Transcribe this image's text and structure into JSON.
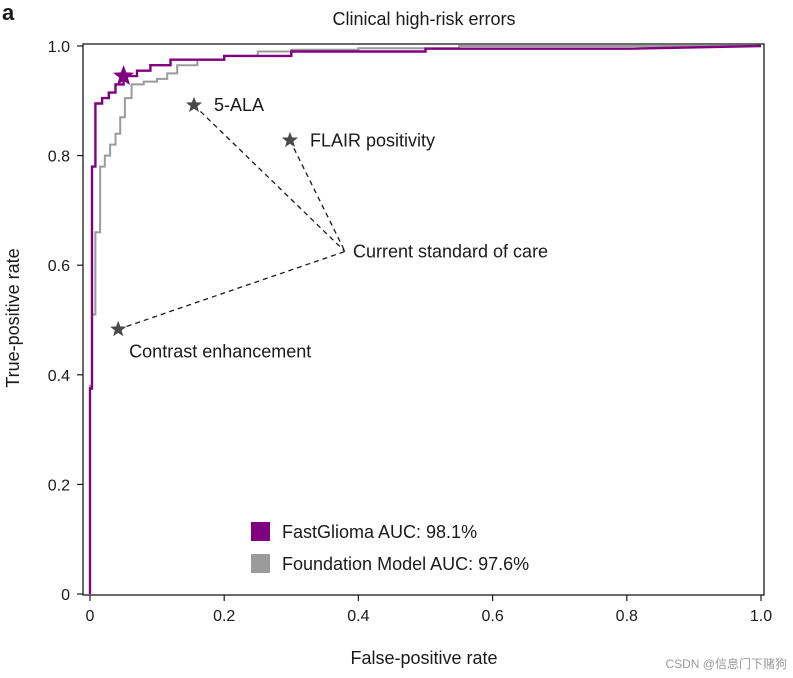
{
  "panel_label": "a",
  "watermark": "CSDN @信息门下赌狗",
  "colors": {
    "fastglioma": "#800080",
    "foundation": "#9b9b9b",
    "star": "#4a4a4a",
    "axis": "#1a1a1a"
  },
  "chart_data": {
    "type": "line",
    "title": "Clinical high-risk errors",
    "xlabel": "False-positive rate",
    "ylabel": "True-positive rate",
    "xlim": [
      0,
      1.0
    ],
    "ylim": [
      0,
      1.0
    ],
    "xticks": [
      0,
      0.2,
      0.4,
      0.6,
      0.8,
      1.0
    ],
    "xtick_labels": [
      "0",
      "0.2",
      "0.4",
      "0.6",
      "0.8",
      "1.0"
    ],
    "yticks": [
      0,
      0.2,
      0.4,
      0.6,
      0.8,
      1.0
    ],
    "ytick_labels": [
      "0",
      "0.2",
      "0.4",
      "0.6",
      "0.8",
      "1.0"
    ],
    "grid": false,
    "legend": {
      "position": "bottom-center",
      "items": [
        {
          "name": "FastGlioma AUC: 98.1%",
          "series": 0
        },
        {
          "name": "Foundation Model AUC: 97.6%",
          "series": 1
        }
      ]
    },
    "series": [
      {
        "name": "FastGlioma",
        "auc": 98.1,
        "x": [
          0,
          0,
          0.003,
          0.003,
          0.008,
          0.008,
          0.018,
          0.018,
          0.028,
          0.028,
          0.038,
          0.038,
          0.05,
          0.05,
          0.07,
          0.07,
          0.09,
          0.09,
          0.12,
          0.12,
          0.2,
          0.2,
          0.3,
          0.3,
          0.5,
          0.5,
          0.8,
          1.0
        ],
        "y": [
          0,
          0.375,
          0.375,
          0.78,
          0.78,
          0.895,
          0.895,
          0.905,
          0.905,
          0.915,
          0.915,
          0.93,
          0.93,
          0.945,
          0.945,
          0.955,
          0.955,
          0.965,
          0.965,
          0.975,
          0.975,
          0.982,
          0.982,
          0.99,
          0.99,
          0.995,
          0.995,
          1.0
        ]
      },
      {
        "name": "Foundation Model",
        "auc": 97.6,
        "x": [
          0,
          0,
          0.003,
          0.003,
          0.008,
          0.008,
          0.015,
          0.015,
          0.022,
          0.022,
          0.03,
          0.03,
          0.038,
          0.038,
          0.045,
          0.045,
          0.052,
          0.052,
          0.062,
          0.062,
          0.08,
          0.08,
          0.1,
          0.1,
          0.115,
          0.115,
          0.13,
          0.13,
          0.16,
          0.16,
          0.2,
          0.2,
          0.25,
          0.25,
          0.3,
          0.3,
          0.4,
          0.4,
          0.55,
          0.55,
          0.69,
          0.69,
          1.0
        ],
        "y": [
          0,
          0.38,
          0.38,
          0.51,
          0.51,
          0.66,
          0.66,
          0.78,
          0.78,
          0.8,
          0.8,
          0.82,
          0.82,
          0.84,
          0.84,
          0.87,
          0.87,
          0.905,
          0.905,
          0.93,
          0.93,
          0.935,
          0.935,
          0.94,
          0.94,
          0.95,
          0.95,
          0.965,
          0.965,
          0.975,
          0.975,
          0.982,
          0.982,
          0.99,
          0.99,
          0.993,
          0.993,
          0.996,
          0.996,
          1.0,
          1.0,
          1.0,
          1.0
        ]
      }
    ],
    "operating_point": {
      "series": "FastGlioma",
      "x": 0.05,
      "y": 0.945
    },
    "hub": {
      "label": "Current standard of care",
      "x": 0.38,
      "y": 0.625
    },
    "annotations": [
      {
        "label": "5-ALA",
        "x": 0.155,
        "y": 0.892,
        "label_side": "right"
      },
      {
        "label": "FLAIR positivity",
        "x": 0.298,
        "y": 0.828,
        "label_side": "right"
      },
      {
        "label": "Contrast enhancement",
        "x": 0.042,
        "y": 0.483,
        "label_side": "below-right"
      }
    ]
  }
}
